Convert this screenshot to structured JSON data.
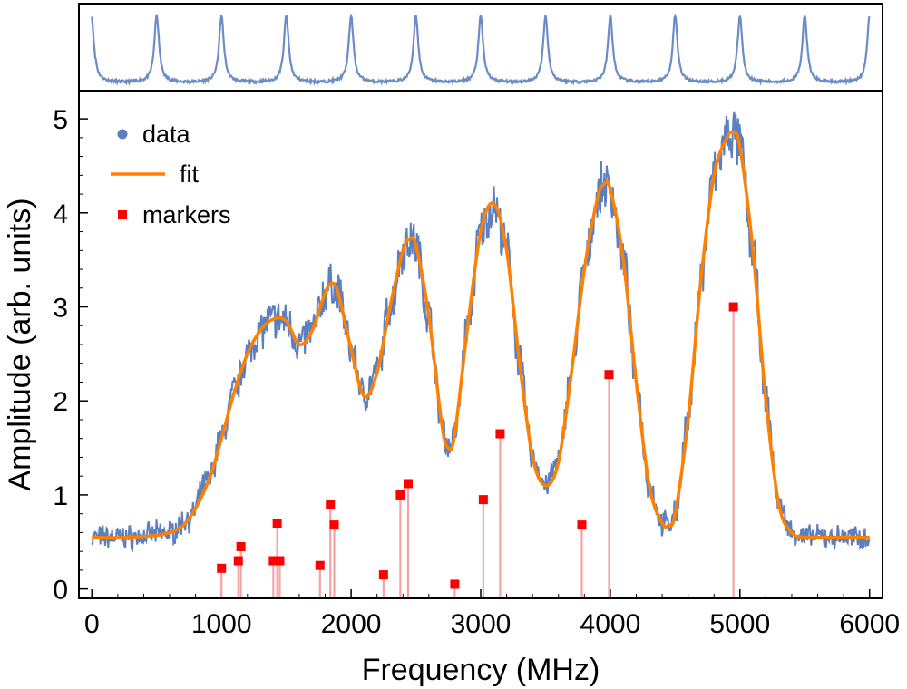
{
  "chart_data": {
    "type": "line",
    "xlabel": "Frequency (MHz)",
    "ylabel": "Amplitude (arb. units)",
    "xlim": [
      -100,
      6100
    ],
    "ylim": [
      -0.1,
      5.3
    ],
    "x_ticks": [
      0,
      1000,
      2000,
      3000,
      4000,
      5000,
      6000
    ],
    "x_tick_labels": [
      "0",
      "1000",
      "2000",
      "3000",
      "4000",
      "5000",
      "6000"
    ],
    "y_ticks": [
      0,
      1,
      2,
      3,
      4,
      5
    ],
    "y_tick_labels": [
      "0",
      "1",
      "2",
      "3",
      "4",
      "5"
    ],
    "legend": {
      "position": "top-left",
      "entries": [
        {
          "label": "data",
          "kind": "dot",
          "color": "#5b7fbf"
        },
        {
          "label": "fit",
          "kind": "line",
          "color": "#ff8000"
        },
        {
          "label": "markers",
          "kind": "square",
          "color": "#ff0000"
        }
      ]
    },
    "series": [
      {
        "name": "fit",
        "color": "#ff8000",
        "x": [
          0,
          300,
          600,
          750,
          900,
          1000,
          1100,
          1200,
          1300,
          1400,
          1500,
          1600,
          1700,
          1800,
          1850,
          1900,
          2000,
          2100,
          2200,
          2300,
          2400,
          2450,
          2500,
          2600,
          2700,
          2750,
          2800,
          2900,
          3000,
          3100,
          3200,
          3300,
          3400,
          3500,
          3600,
          3700,
          3800,
          3900,
          3950,
          4000,
          4100,
          4200,
          4300,
          4400,
          4450,
          4500,
          4600,
          4700,
          4800,
          4900,
          4950,
          5000,
          5100,
          5200,
          5300,
          5400,
          5500,
          5600,
          6000
        ],
        "values": [
          0.55,
          0.55,
          0.6,
          0.75,
          1.15,
          1.6,
          2.1,
          2.5,
          2.75,
          2.87,
          2.85,
          2.6,
          2.75,
          3.15,
          3.25,
          3.15,
          2.55,
          2.05,
          2.3,
          3.0,
          3.6,
          3.72,
          3.65,
          2.9,
          1.75,
          1.5,
          1.65,
          2.8,
          3.8,
          4.1,
          3.6,
          2.4,
          1.4,
          1.1,
          1.35,
          2.3,
          3.4,
          4.15,
          4.3,
          4.25,
          3.5,
          2.2,
          1.1,
          0.7,
          0.68,
          0.8,
          1.8,
          3.3,
          4.4,
          4.8,
          4.85,
          4.7,
          3.6,
          2.0,
          0.9,
          0.6,
          0.55,
          0.55,
          0.55
        ]
      },
      {
        "name": "markers",
        "color": "#ff0000",
        "x": [
          1000,
          1130,
          1150,
          1400,
          1430,
          1450,
          1760,
          1840,
          1870,
          2250,
          2380,
          2440,
          2800,
          3020,
          3150,
          3780,
          3990,
          4950
        ],
        "values": [
          0.22,
          0.3,
          0.45,
          0.3,
          0.7,
          0.3,
          0.25,
          0.9,
          0.68,
          0.15,
          1.0,
          1.12,
          0.05,
          0.95,
          1.65,
          0.68,
          2.28,
          3.0
        ]
      },
      {
        "name": "data",
        "color": "#5b7fbf",
        "note": "noisy trace following the fit curve"
      }
    ],
    "inset": {
      "position": "top",
      "type": "line",
      "description": "periodic sharp peaks (transmission spectrum)",
      "peak_x": [
        500,
        1000,
        1500,
        2000,
        2500,
        3000,
        3500,
        4000,
        4500,
        5000,
        5500,
        6000
      ],
      "baseline": 0.0,
      "peak_height": 1.0,
      "ylim": [
        -0.1,
        1.15
      ]
    }
  }
}
